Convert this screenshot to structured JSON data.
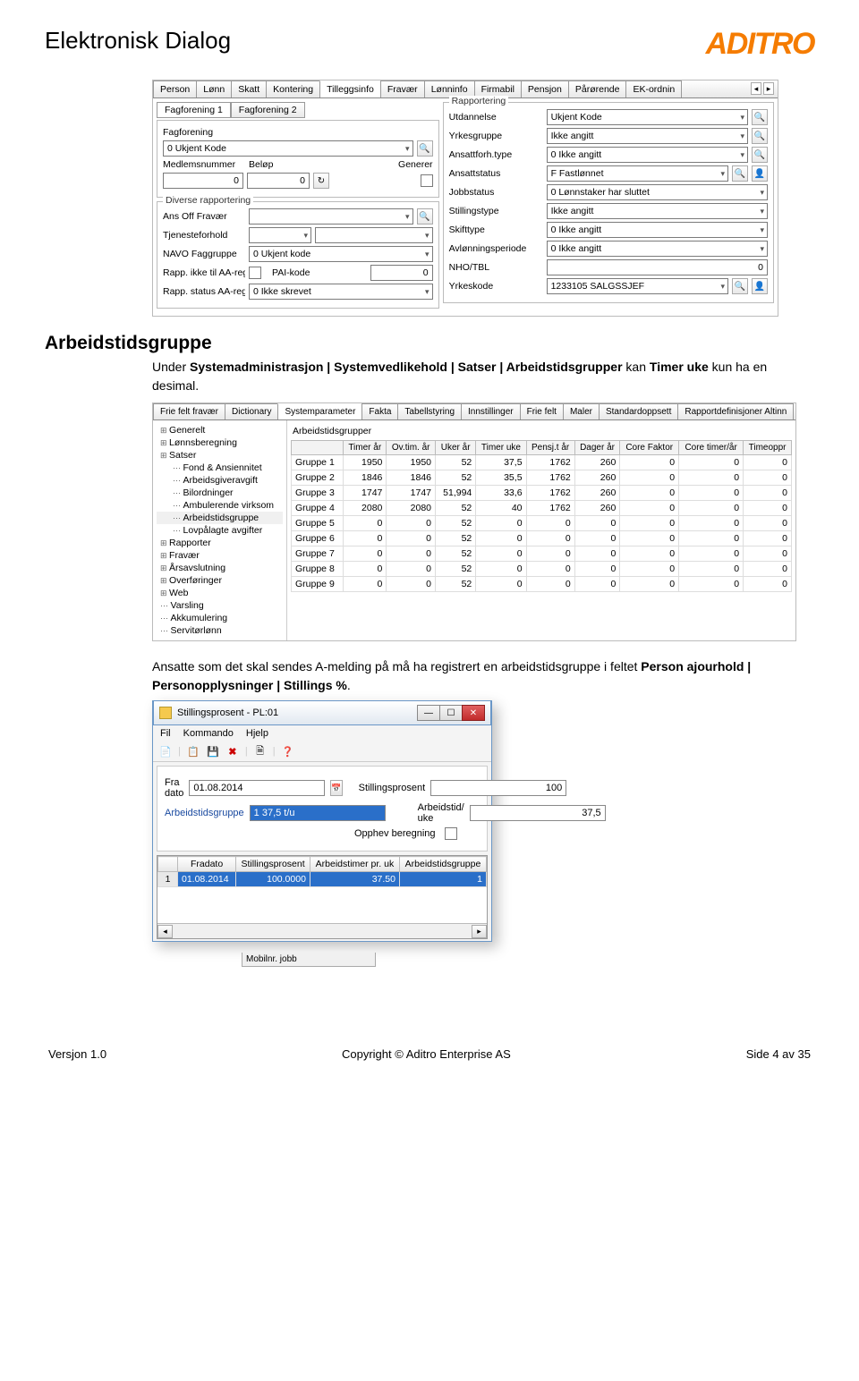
{
  "doc": {
    "title": "Elektronisk Dialog",
    "logo": "ADITRO",
    "colors": {
      "logo": "#f57c00",
      "accent": "#2a6fc9"
    }
  },
  "ss1": {
    "tabs": [
      "Person",
      "Lønn",
      "Skatt",
      "Kontering",
      "Tilleggsinfo",
      "Fravær",
      "Lønninfo",
      "Firmabil",
      "Pensjon",
      "Pårørende",
      "EK-ordnin"
    ],
    "active_tab": 4,
    "left": {
      "subtabs": [
        "Fagforening 1",
        "Fagforening 2"
      ],
      "fagforening_label": "Fagforening",
      "fagforening": "0 Ukjent Kode",
      "medlemsnummer_label": "Medlemsnummer",
      "medlemsnummer": "0",
      "belop_label": "Beløp",
      "belop": "0",
      "generer_label": "Generer",
      "group2_title": "Diverse rapportering",
      "ansoff_label": "Ans Off Fravær",
      "tjeneste_label": "Tjenesteforhold",
      "navo_label": "NAVO Faggruppe",
      "navo": "0 Ukjent kode",
      "rapp_ikke_label": "Rapp. ikke til AA-reg",
      "pai_label": "PAI-kode",
      "pai": "0",
      "rapp_status_label": "Rapp. status AA-reg",
      "rapp_status": "0 Ikke skrevet"
    },
    "right": {
      "group_title": "Rapportering",
      "rows": [
        {
          "label": "Utdannelse",
          "val": "Ukjent Kode",
          "mag": 1
        },
        {
          "label": "Yrkesgruppe",
          "val": "Ikke angitt",
          "mag": 1
        },
        {
          "label": "Ansattforh.type",
          "val": "0 Ikke angitt",
          "mag": 1
        },
        {
          "label": "Ansattstatus",
          "val": "F Fastlønnet",
          "mag": 2
        },
        {
          "label": "Jobbstatus",
          "val": "0 Lønnstaker har sluttet",
          "mag": 0
        },
        {
          "label": "Stillingstype",
          "val": "Ikke angitt",
          "mag": 0
        },
        {
          "label": "Skifttype",
          "val": "0 Ikke angitt",
          "mag": 0
        },
        {
          "label": "Avlønningsperiode",
          "val": "0 Ikke angitt",
          "mag": 0
        }
      ],
      "nho_label": "NHO/TBL",
      "nho": "0",
      "yrkeskode_label": "Yrkeskode",
      "yrkeskode": "1233105 SALGSSJEF"
    }
  },
  "section1": {
    "heading": "Arbeidstidsgruppe",
    "text_pre": "Under ",
    "text_bold": "Systemadministrasjon | Systemvedlikehold | Satser | Arbeidstidsgrupper",
    "text_mid": " kan ",
    "text_bold2": "Timer uke",
    "text_post": " kun ha en desimal."
  },
  "ss2": {
    "tabs": [
      "Frie felt fravær",
      "Dictionary",
      "Systemparameter",
      "Fakta",
      "Tabellstyring",
      "Innstillinger",
      "Frie felt",
      "Maler",
      "Standardoppsett",
      "Rapportdefinisjoner Altinn"
    ],
    "active_tab": 2,
    "tree": [
      {
        "t": "Generelt",
        "l": 0,
        "leaf": 0
      },
      {
        "t": "Lønnsberegning",
        "l": 0,
        "leaf": 0
      },
      {
        "t": "Satser",
        "l": 0,
        "leaf": 0
      },
      {
        "t": "Fond & Ansiennitet",
        "l": 1,
        "leaf": 1
      },
      {
        "t": "Arbeidsgiveravgift",
        "l": 1,
        "leaf": 1
      },
      {
        "t": "Bilordninger",
        "l": 1,
        "leaf": 1
      },
      {
        "t": "Ambulerende virksom",
        "l": 1,
        "leaf": 1
      },
      {
        "t": "Arbeidstidsgruppe",
        "l": 1,
        "leaf": 1,
        "sel": 1
      },
      {
        "t": "Lovpålagte avgifter",
        "l": 1,
        "leaf": 1
      },
      {
        "t": "Rapporter",
        "l": 0,
        "leaf": 0
      },
      {
        "t": "Fravær",
        "l": 0,
        "leaf": 0
      },
      {
        "t": "Årsavslutning",
        "l": 0,
        "leaf": 0
      },
      {
        "t": "Overføringer",
        "l": 0,
        "leaf": 0
      },
      {
        "t": "Web",
        "l": 0,
        "leaf": 0
      },
      {
        "t": "Varsling",
        "l": 0,
        "leaf": 1
      },
      {
        "t": "Akkumulering",
        "l": 0,
        "leaf": 1
      },
      {
        "t": "Servitørlønn",
        "l": 0,
        "leaf": 1
      }
    ],
    "grid_title": "Arbeidstidsgrupper",
    "columns": [
      "",
      "Timer år",
      "Ov.tim. år",
      "Uker år",
      "Timer uke",
      "Pensj.t år",
      "Dager år",
      "Core Faktor",
      "Core timer/år",
      "Timeoppr"
    ],
    "rows": [
      [
        "Gruppe 1",
        "1950",
        "1950",
        "52",
        "37,5",
        "1762",
        "260",
        "0",
        "0",
        "0"
      ],
      [
        "Gruppe 2",
        "1846",
        "1846",
        "52",
        "35,5",
        "1762",
        "260",
        "0",
        "0",
        "0"
      ],
      [
        "Gruppe 3",
        "1747",
        "1747",
        "51,994",
        "33,6",
        "1762",
        "260",
        "0",
        "0",
        "0"
      ],
      [
        "Gruppe 4",
        "2080",
        "2080",
        "52",
        "40",
        "1762",
        "260",
        "0",
        "0",
        "0"
      ],
      [
        "Gruppe 5",
        "0",
        "0",
        "52",
        "0",
        "0",
        "0",
        "0",
        "0",
        "0"
      ],
      [
        "Gruppe 6",
        "0",
        "0",
        "52",
        "0",
        "0",
        "0",
        "0",
        "0",
        "0"
      ],
      [
        "Gruppe 7",
        "0",
        "0",
        "52",
        "0",
        "0",
        "0",
        "0",
        "0",
        "0"
      ],
      [
        "Gruppe 8",
        "0",
        "0",
        "52",
        "0",
        "0",
        "0",
        "0",
        "0",
        "0"
      ],
      [
        "Gruppe 9",
        "0",
        "0",
        "52",
        "0",
        "0",
        "0",
        "0",
        "0",
        "0"
      ]
    ]
  },
  "section2": {
    "text_pre": "Ansatte som det skal sendes A-melding på må ha registrert en arbeidstidsgruppe i feltet ",
    "text_bold": "Person ajourhold | Personopplysninger | Stillings %",
    "text_post": "."
  },
  "ss3": {
    "title": "Stillingsprosent - PL:01",
    "menu": [
      "Fil",
      "Kommando",
      "Hjelp"
    ],
    "fradato_label": "Fra dato",
    "fradato": "01.08.2014",
    "stillpros_label": "Stillingsprosent",
    "stillpros": "100",
    "arbgrp_label": "Arbeidstidsgruppe",
    "arbgrp": "1 37,5 t/u",
    "arbuke_label": "Arbeidstid/ uke",
    "arbuke": "37,5",
    "opphev_label": "Opphev beregning",
    "grid_cols": [
      "",
      "Fradato",
      "Stillingsprosent",
      "Arbeidstimer pr. uk",
      "Arbeidstidsgruppe"
    ],
    "grid_row": [
      "1",
      "01.08.2014",
      "100.0000",
      "37.50",
      "1"
    ],
    "behind_text": "Mobilnr. jobb"
  },
  "footer": {
    "left": "Versjon 1.0",
    "center": "Copyright © Aditro Enterprise AS",
    "right": "Side 4 av 35"
  }
}
